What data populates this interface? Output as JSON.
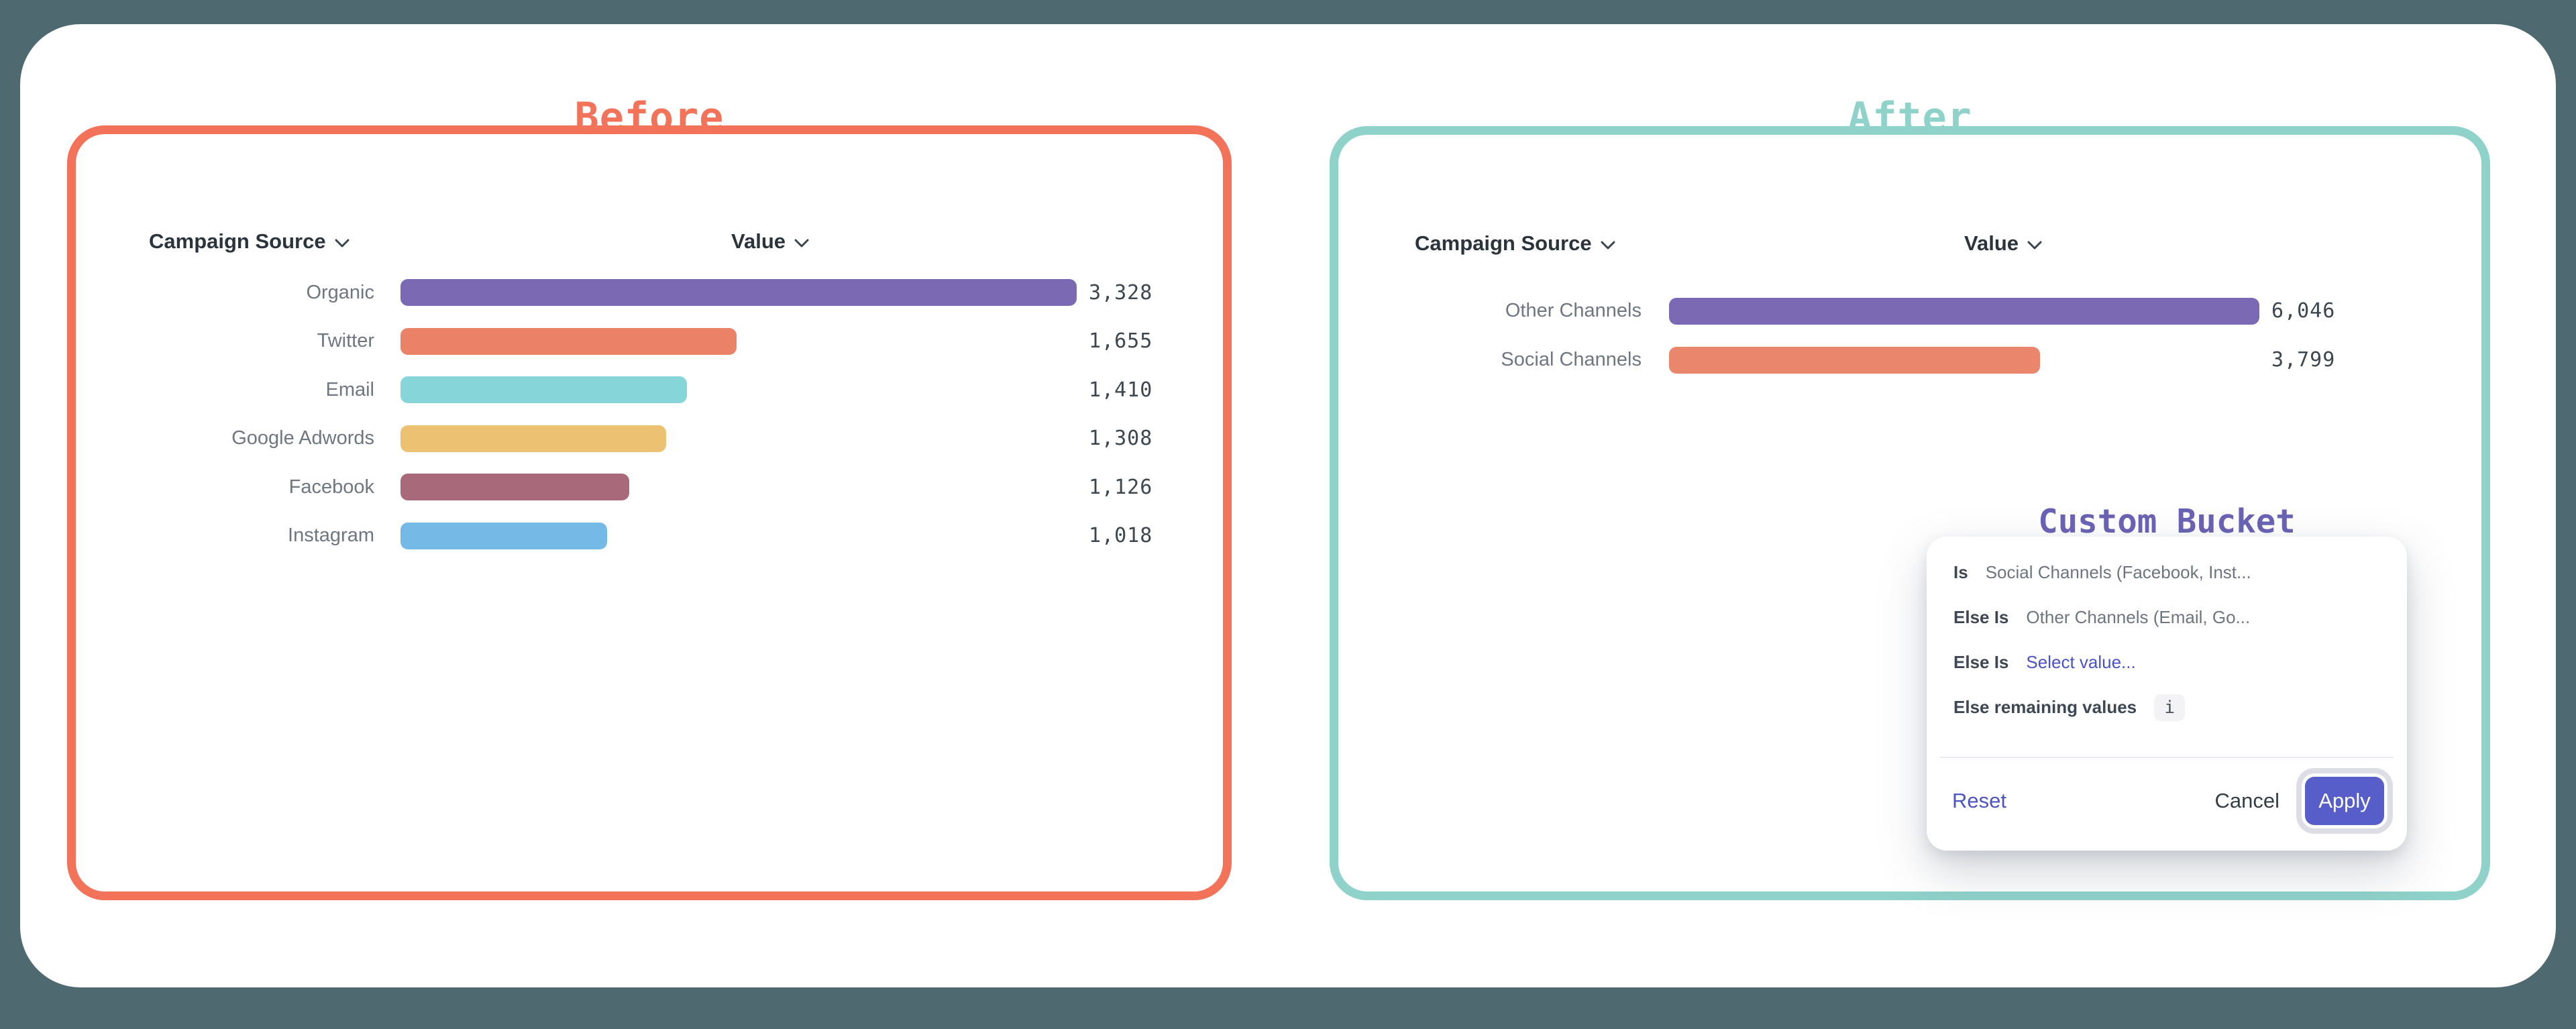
{
  "page": {
    "background_color": "#4e696f",
    "before": {
      "title": "Before",
      "accent_color": "#f3735a",
      "table": {
        "source_header": "Campaign Source",
        "value_header": "Value"
      }
    },
    "after": {
      "title": "After",
      "accent_color": "#8fd2ca",
      "table": {
        "source_header": "Campaign Source",
        "value_header": "Value"
      }
    }
  },
  "chart_data": [
    {
      "type": "bar",
      "title": "Before",
      "orientation": "horizontal",
      "column_headers": [
        "Campaign Source",
        "Value"
      ],
      "categories": [
        "Organic",
        "Twitter",
        "Email",
        "Google Adwords",
        "Facebook",
        "Instagram"
      ],
      "values": [
        3328,
        1655,
        1410,
        1308,
        1126,
        1018
      ],
      "value_labels": [
        "3,328",
        "1,655",
        "1,410",
        "1,308",
        "1,126",
        "1,018"
      ],
      "colors": [
        "#7b6ab3",
        "#eb8268",
        "#85d5d9",
        "#edc172",
        "#a86a7a",
        "#75bae7"
      ],
      "xlabel": "Value",
      "ylabel": "Campaign Source",
      "xlim": [
        0,
        3328
      ],
      "grid": false,
      "legend": false
    },
    {
      "type": "bar",
      "title": "After",
      "orientation": "horizontal",
      "column_headers": [
        "Campaign Source",
        "Value"
      ],
      "categories": [
        "Other Channels",
        "Social Channels"
      ],
      "values": [
        6046,
        3799
      ],
      "value_labels": [
        "6,046",
        "3,799"
      ],
      "colors": [
        "#7b6ab3",
        "#ea866b"
      ],
      "xlabel": "Value",
      "ylabel": "Campaign Source",
      "xlim": [
        0,
        6046
      ],
      "grid": false,
      "legend": false
    }
  ],
  "dialog": {
    "title": "Custom Bucket",
    "title_color": "#6a63b5",
    "rows": [
      {
        "condition": "Is",
        "value": "Social Channels (Facebook, Inst...",
        "style": "muted"
      },
      {
        "condition": "Else Is",
        "value": "Other Channels (Email, Go...",
        "style": "muted"
      },
      {
        "condition": "Else Is",
        "value": "Select value...",
        "style": "link"
      },
      {
        "condition": "Else remaining values",
        "value": "",
        "style": "muted",
        "info_icon": "i"
      }
    ],
    "footer": {
      "reset": "Reset",
      "cancel": "Cancel",
      "apply": "Apply"
    }
  }
}
